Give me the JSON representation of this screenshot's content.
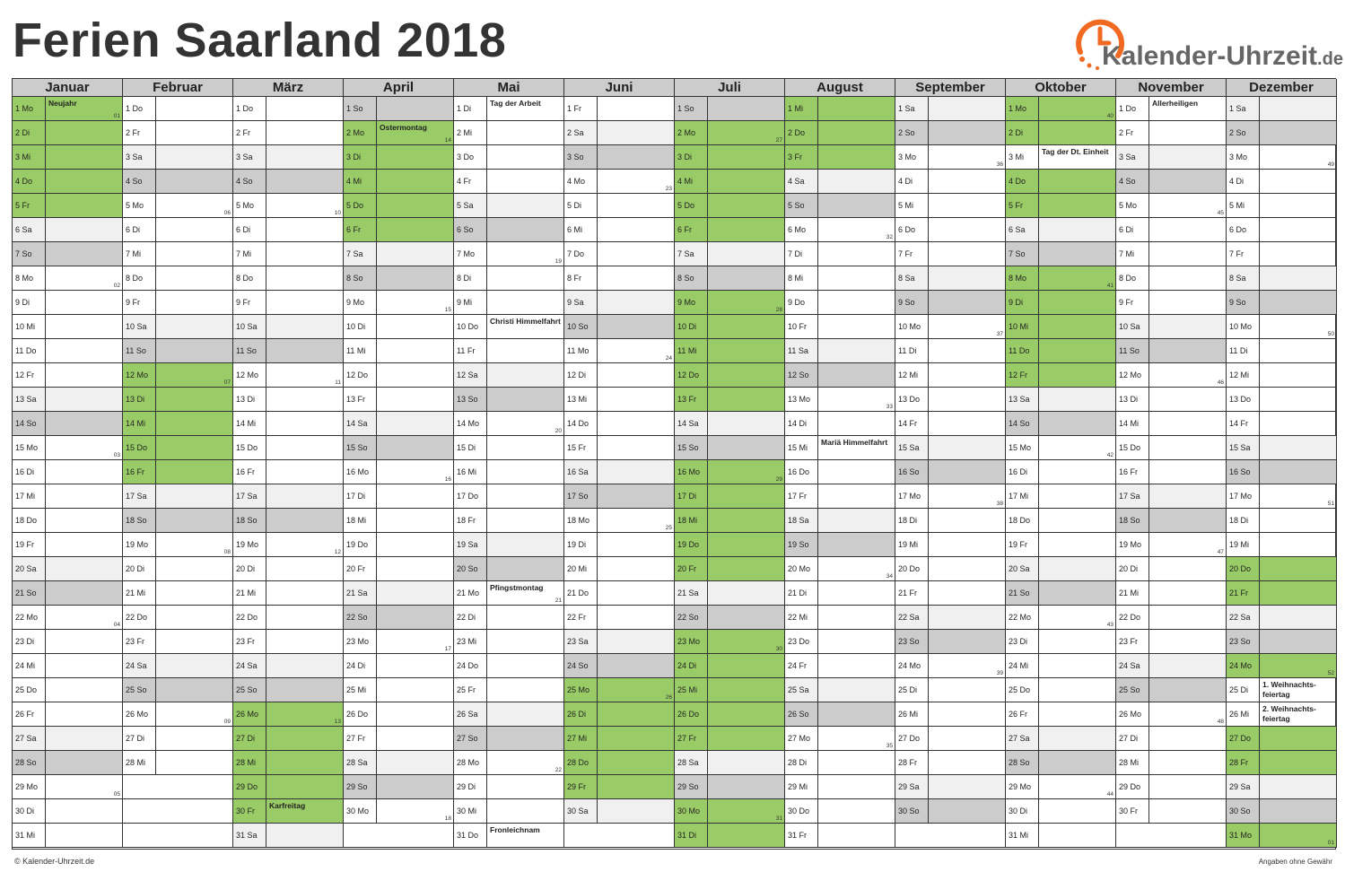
{
  "title": "Ferien Saarland 2018",
  "logo": {
    "brand": "Kalender-Uhrzeit",
    "tld": ".de",
    "icon": "clock-icon"
  },
  "footer": {
    "left": "© Kalender-Uhrzeit.de",
    "right": "Angaben ohne Gewähr"
  },
  "colors": {
    "holiday": "#99cc66",
    "saturday": "#f0f0f0",
    "sunday": "#cccccc",
    "header": "#cccccc"
  },
  "day_abbrev": [
    "So",
    "Mo",
    "Di",
    "Mi",
    "Do",
    "Fr",
    "Sa"
  ],
  "months": [
    {
      "name": "Januar",
      "days": 31,
      "first_weekday": 1,
      "holidays": [
        1,
        2,
        3,
        4,
        5
      ],
      "labels": {
        "1": "Neujahr"
      },
      "weeks": {
        "1": "01",
        "8": "02",
        "15": "03",
        "22": "04",
        "29": "05"
      }
    },
    {
      "name": "Februar",
      "days": 28,
      "first_weekday": 4,
      "holidays": [
        12,
        13,
        14,
        15,
        16
      ],
      "labels": {},
      "weeks": {
        "5": "06",
        "12": "07",
        "19": "08",
        "26": "09"
      }
    },
    {
      "name": "März",
      "days": 31,
      "first_weekday": 4,
      "holidays": [
        26,
        27,
        28,
        29,
        30
      ],
      "labels": {
        "30": "Karfreitag"
      },
      "weeks": {
        "5": "10",
        "12": "11",
        "19": "12",
        "26": "13"
      }
    },
    {
      "name": "April",
      "days": 30,
      "first_weekday": 0,
      "holidays": [
        2,
        3,
        4,
        5,
        6
      ],
      "labels": {
        "2": "Ostermontag"
      },
      "weeks": {
        "2": "14",
        "9": "15",
        "16": "16",
        "23": "17",
        "30": "18"
      }
    },
    {
      "name": "Mai",
      "days": 31,
      "first_weekday": 2,
      "holidays": [],
      "labels": {
        "1": "Tag der Arbeit",
        "10": "Christi Himmelfahrt",
        "21": "Pfingstmontag",
        "31": "Fronleichnam"
      },
      "weeks": {
        "7": "19",
        "14": "20",
        "21": "21",
        "28": "22"
      }
    },
    {
      "name": "Juni",
      "days": 30,
      "first_weekday": 5,
      "holidays": [
        25,
        26,
        27,
        28,
        29
      ],
      "labels": {},
      "weeks": {
        "4": "23",
        "11": "24",
        "18": "25",
        "25": "26"
      }
    },
    {
      "name": "Juli",
      "days": 31,
      "first_weekday": 0,
      "holidays": [
        2,
        3,
        4,
        5,
        6,
        9,
        10,
        11,
        12,
        13,
        16,
        17,
        18,
        19,
        20,
        23,
        24,
        25,
        26,
        27,
        30,
        31
      ],
      "labels": {},
      "weeks": {
        "2": "27",
        "9": "28",
        "16": "29",
        "23": "30",
        "30": "31"
      }
    },
    {
      "name": "August",
      "days": 31,
      "first_weekday": 3,
      "holidays": [
        1,
        2,
        3
      ],
      "labels": {
        "15": "Mariä Himmelfahrt"
      },
      "weeks": {
        "6": "32",
        "13": "33",
        "20": "34",
        "27": "35"
      }
    },
    {
      "name": "September",
      "days": 30,
      "first_weekday": 6,
      "holidays": [],
      "labels": {},
      "weeks": {
        "3": "36",
        "10": "37",
        "17": "38",
        "24": "39"
      }
    },
    {
      "name": "Oktober",
      "days": 31,
      "first_weekday": 1,
      "holidays": [
        1,
        2,
        4,
        5,
        8,
        9,
        10,
        11,
        12
      ],
      "labels": {
        "3": "Tag der Dt. Einheit"
      },
      "weeks": {
        "1": "40",
        "8": "41",
        "15": "42",
        "22": "43",
        "29": "44"
      }
    },
    {
      "name": "November",
      "days": 30,
      "first_weekday": 4,
      "holidays": [],
      "labels": {
        "1": "Allerheiligen"
      },
      "weeks": {
        "5": "45",
        "12": "46",
        "19": "47",
        "26": "48"
      }
    },
    {
      "name": "Dezember",
      "days": 31,
      "first_weekday": 6,
      "holidays": [
        20,
        21,
        24,
        27,
        28,
        31
      ],
      "labels": {
        "25": "1. Weihnachts-feiertag",
        "26": "2. Weihnachts-feiertag"
      },
      "weeks": {
        "3": "49",
        "10": "50",
        "17": "51",
        "24": "52",
        "31": "01"
      }
    }
  ]
}
